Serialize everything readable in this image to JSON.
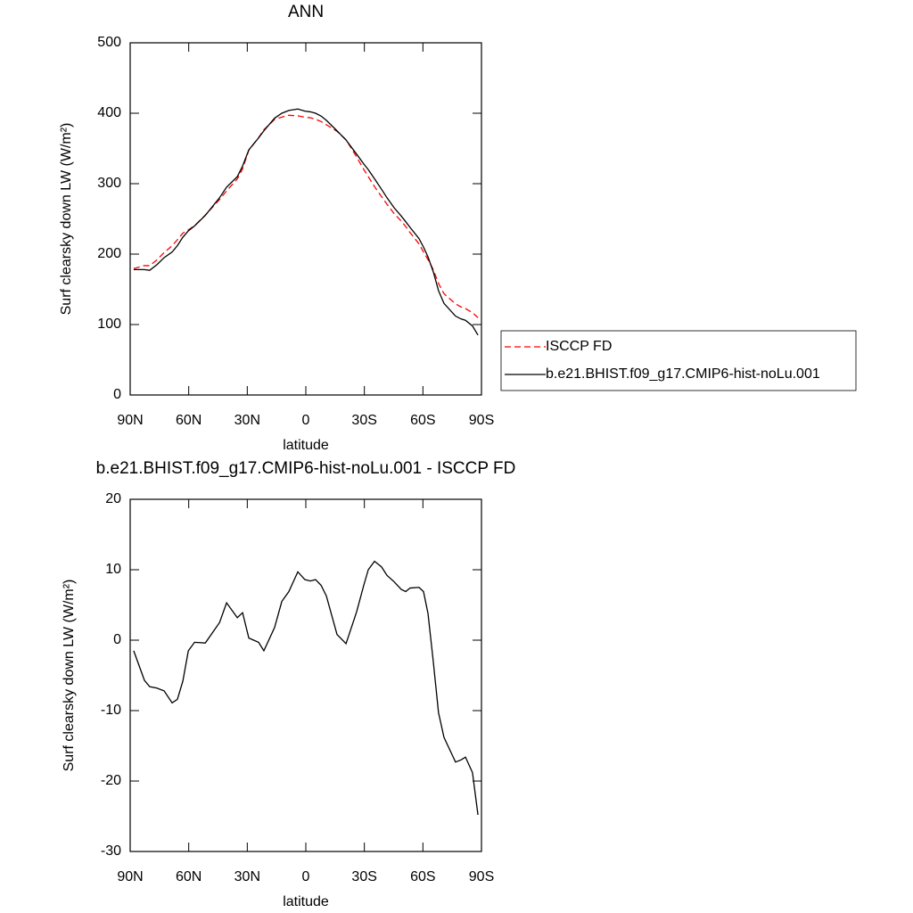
{
  "chart_data": [
    {
      "type": "line",
      "title": "ANN",
      "xlabel": "latitude",
      "ylabel": "Surf clearsky down LW (W/m²)",
      "x": [
        88.2,
        82.7,
        80,
        76.3,
        72.6,
        68.5,
        65.8,
        63,
        60.2,
        57,
        51.5,
        44.2,
        40.6,
        35.1,
        32.4,
        29.2,
        24.2,
        21.5,
        16,
        12.3,
        8.7,
        4.1,
        0.5,
        -2.3,
        -5,
        -7.8,
        -10.5,
        -16,
        -20.6,
        -26,
        -29.7,
        -32,
        -35.2,
        -38.8,
        -41.6,
        -45.2,
        -48.9,
        -51.2,
        -53.4,
        -58,
        -60.3,
        -62.6,
        -65.3,
        -68,
        -70.8,
        -76.7,
        -79.5,
        -81.8,
        -85.4,
        -88.2
      ],
      "series": [
        {
          "name": "ISCCP FD",
          "color": "#ff0000",
          "dashed": true,
          "values": [
            179.5,
            183.7,
            183.6,
            191.8,
            202.2,
            211.9,
            220.4,
            229.8,
            234.5,
            240.3,
            255.4,
            277.5,
            289.7,
            306.8,
            321.1,
            347.7,
            365.3,
            376.5,
            391.2,
            394.5,
            397.1,
            396.3,
            394.4,
            393.6,
            391.4,
            388.2,
            383.7,
            374.2,
            362.5,
            338,
            320.2,
            310,
            295.8,
            281.6,
            270.8,
            257.7,
            246.8,
            239.1,
            230.6,
            214.5,
            203.1,
            192.2,
            178,
            158.3,
            143.8,
            129.3,
            125,
            122.6,
            116.8,
            109.8
          ]
        },
        {
          "name": "b.e21.BHIST.f09_g17.CMIP6-hist-noLu.001",
          "color": "#000000",
          "dashed": false,
          "values": [
            178,
            178,
            177,
            185,
            195,
            203,
            212,
            224,
            233,
            240,
            255,
            280,
            295,
            310,
            325,
            348,
            365,
            375,
            393,
            400,
            404,
            406,
            403,
            402,
            400,
            396,
            390,
            375,
            362,
            342,
            328,
            320,
            307,
            292,
            280,
            266,
            254,
            246,
            238,
            222,
            210,
            196,
            175,
            148,
            130,
            112,
            108,
            106,
            98,
            85
          ]
        }
      ],
      "xlim": [
        90,
        -90
      ],
      "xticks": [
        {
          "value": 90,
          "label": "90N"
        },
        {
          "value": 60,
          "label": "60N"
        },
        {
          "value": 30,
          "label": "30N"
        },
        0,
        {
          "value": -30,
          "label": "30S"
        },
        {
          "value": -60,
          "label": "60S"
        },
        {
          "value": -90,
          "label": "90S"
        }
      ],
      "ylim": [
        0,
        500
      ],
      "yticks": [
        0,
        100,
        200,
        300,
        400,
        500
      ],
      "legend": "right"
    },
    {
      "type": "line",
      "title": "b.e21.BHIST.f09_g17.CMIP6-hist-noLu.001 - ISCCP FD",
      "xlabel": "latitude",
      "ylabel": "Surf clearsky down LW (W/m²)",
      "x": [
        88.2,
        82.7,
        80,
        76.3,
        72.6,
        68.5,
        65.8,
        63,
        60.2,
        57,
        51.5,
        44.2,
        40.6,
        35.1,
        32.4,
        29.2,
        24.2,
        21.5,
        16,
        12.3,
        8.7,
        4.1,
        0.5,
        -2.3,
        -5,
        -7.8,
        -10.5,
        -16,
        -20.6,
        -26,
        -29.7,
        -32,
        -35.2,
        -38.8,
        -41.6,
        -45.2,
        -48.9,
        -51.2,
        -53.4,
        -58,
        -60.3,
        -62.6,
        -65.3,
        -68,
        -70.8,
        -76.7,
        -79.5,
        -81.8,
        -85.4,
        -88.2
      ],
      "color": "#000000",
      "values": [
        -1.5,
        -5.7,
        -6.6,
        -6.8,
        -7.2,
        -8.9,
        -8.4,
        -5.8,
        -1.5,
        -0.3,
        -0.4,
        2.5,
        5.3,
        3.2,
        3.9,
        0.3,
        -0.3,
        -1.5,
        1.8,
        5.5,
        6.9,
        9.7,
        8.6,
        8.4,
        8.6,
        7.8,
        6.3,
        0.8,
        -0.5,
        4,
        7.8,
        10,
        11.2,
        10.4,
        9.2,
        8.3,
        7.2,
        6.9,
        7.4,
        7.5,
        6.9,
        3.8,
        -3,
        -10.3,
        -13.8,
        -17.3,
        -17,
        -16.6,
        -18.8,
        -24.8
      ],
      "xlim": [
        90,
        -90
      ],
      "xticks": [
        {
          "value": 90,
          "label": "90N"
        },
        {
          "value": 60,
          "label": "60N"
        },
        {
          "value": 30,
          "label": "30N"
        },
        0,
        {
          "value": -30,
          "label": "30S"
        },
        {
          "value": -60,
          "label": "60S"
        },
        {
          "value": -90,
          "label": "90S"
        }
      ],
      "ylim": [
        -30,
        20
      ],
      "yticks": [
        -30,
        -20,
        -10,
        0,
        10,
        20
      ]
    }
  ]
}
